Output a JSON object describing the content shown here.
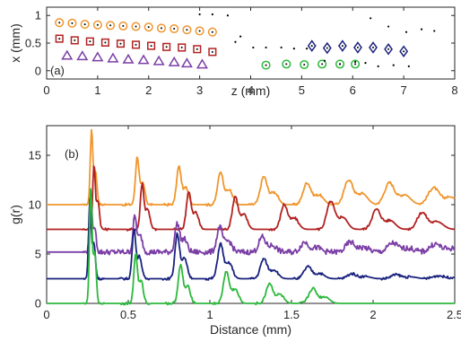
{
  "chart_data": [
    {
      "type": "scatter",
      "panel_label": "(a)",
      "xlabel": "z (mm)",
      "ylabel": "x (mm)",
      "xlim": [
        0,
        8
      ],
      "ylim": [
        -0.15,
        1.15
      ],
      "xticks": [
        0,
        1,
        2,
        3,
        4,
        5,
        6,
        7,
        8
      ],
      "yticks": [
        0,
        0.5,
        1
      ],
      "ytick_labels": [
        "0",
        "0.5",
        "1"
      ],
      "grid": false,
      "series": [
        {
          "marker": "circle-dot",
          "color": "#F0962E",
          "x": [
            0.25,
            0.5,
            0.75,
            1.0,
            1.25,
            1.5,
            1.75,
            2.0,
            2.25,
            2.5,
            2.75,
            3.0,
            3.25
          ],
          "y": [
            0.87,
            0.86,
            0.84,
            0.83,
            0.82,
            0.81,
            0.8,
            0.79,
            0.77,
            0.76,
            0.74,
            0.72,
            0.7
          ]
        },
        {
          "marker": "square-dot",
          "color": "#B22222",
          "x": [
            0.25,
            0.55,
            0.85,
            1.15,
            1.45,
            1.75,
            2.05,
            2.35,
            2.65,
            2.95,
            3.25
          ],
          "y": [
            0.58,
            0.55,
            0.53,
            0.51,
            0.49,
            0.47,
            0.45,
            0.43,
            0.42,
            0.39,
            0.34
          ]
        },
        {
          "marker": "triangle",
          "color": "#7B3FA6",
          "x": [
            0.4,
            0.7,
            1.0,
            1.3,
            1.6,
            1.9,
            2.2,
            2.5,
            2.75,
            3.05
          ],
          "y": [
            0.27,
            0.26,
            0.24,
            0.22,
            0.2,
            0.19,
            0.17,
            0.15,
            0.13,
            0.11
          ]
        },
        {
          "marker": "circle-dot",
          "color": "#2DB83D",
          "x": [
            4.3,
            4.7,
            5.05,
            5.4,
            5.75,
            6.05
          ],
          "y": [
            0.1,
            0.12,
            0.11,
            0.12,
            0.12,
            0.12
          ]
        },
        {
          "marker": "diamond-dot",
          "color": "#1A237E",
          "x": [
            5.2,
            5.5,
            5.8,
            6.1,
            6.4,
            6.7,
            7.0
          ],
          "y": [
            0.45,
            0.41,
            0.45,
            0.42,
            0.42,
            0.39,
            0.35
          ]
        },
        {
          "marker": "dot",
          "color": "#000000",
          "x": [
            3.0,
            3.25,
            3.55,
            3.8,
            3.7,
            4.05,
            4.3,
            4.6,
            4.85,
            5.1,
            5.45,
            5.75,
            6.05,
            6.35,
            6.7,
            7.05,
            7.35,
            7.6,
            6.25,
            6.5,
            6.8,
            7.1
          ],
          "y": [
            1.02,
            1.02,
            1.0,
            0.62,
            0.52,
            0.42,
            0.42,
            0.42,
            0.4,
            0.4,
            0.18,
            0.12,
            0.16,
            0.95,
            0.8,
            0.7,
            0.75,
            0.72,
            0.14,
            0.08,
            0.1,
            0.08
          ]
        }
      ]
    },
    {
      "type": "line",
      "panel_label": "(b)",
      "xlabel": "Distance (mm)",
      "ylabel": "g(r)",
      "xlim": [
        0,
        2.5
      ],
      "ylim": [
        0,
        18
      ],
      "xticks": [
        0,
        0.5,
        1,
        1.5,
        2,
        2.5
      ],
      "xtick_labels": [
        "0",
        "0.5",
        "1",
        "1.5",
        "2",
        "2.5"
      ],
      "yticks": [
        0,
        5,
        10,
        15
      ],
      "grid": false,
      "series": [
        {
          "color": "#F0962E",
          "baseline": 10,
          "peaks": [
            [
              0.275,
              7.5
            ],
            [
              0.555,
              4.8
            ],
            [
              0.81,
              3.8
            ],
            [
              1.065,
              3.3
            ],
            [
              1.33,
              2.8
            ],
            [
              1.595,
              2.2
            ],
            [
              1.85,
              2.5
            ],
            [
              2.1,
              2.2
            ],
            [
              2.37,
              1.7
            ]
          ]
        },
        {
          "color": "#B22222",
          "baseline": 7.5,
          "peaks": [
            [
              0.29,
              6.5
            ],
            [
              0.585,
              4.6
            ],
            [
              0.87,
              3.8
            ],
            [
              1.155,
              3.3
            ],
            [
              1.455,
              2.5
            ],
            [
              1.74,
              2.8
            ],
            [
              2.02,
              2.0
            ],
            [
              2.3,
              1.7
            ]
          ]
        },
        {
          "color": "#7B3FA6",
          "baseline": 5.2,
          "peaks": [
            [
              0.27,
              5.5
            ],
            [
              0.54,
              3.6
            ],
            [
              0.8,
              2.9
            ],
            [
              1.06,
              2.5
            ],
            [
              1.32,
              1.5
            ],
            [
              1.58,
              1.0
            ],
            [
              1.86,
              1.0
            ],
            [
              2.12,
              0.9
            ],
            [
              2.38,
              0.8
            ]
          ]
        },
        {
          "color": "#1A237E",
          "baseline": 2.5,
          "peaks": [
            [
              0.265,
              8.0
            ],
            [
              0.535,
              5.0
            ],
            [
              0.8,
              4.5
            ],
            [
              1.065,
              3.5
            ],
            [
              1.33,
              2.0
            ],
            [
              1.6,
              1.2
            ],
            [
              1.87,
              0.5
            ],
            [
              2.14,
              0.4
            ],
            [
              2.4,
              0.3
            ]
          ]
        },
        {
          "color": "#2DB83D",
          "baseline": 0,
          "peaks": [
            [
              0.27,
              11.5
            ],
            [
              0.545,
              5.0
            ],
            [
              0.82,
              3.8
            ],
            [
              1.1,
              3.2
            ],
            [
              1.365,
              2.0
            ],
            [
              1.63,
              1.5
            ]
          ]
        }
      ]
    }
  ]
}
